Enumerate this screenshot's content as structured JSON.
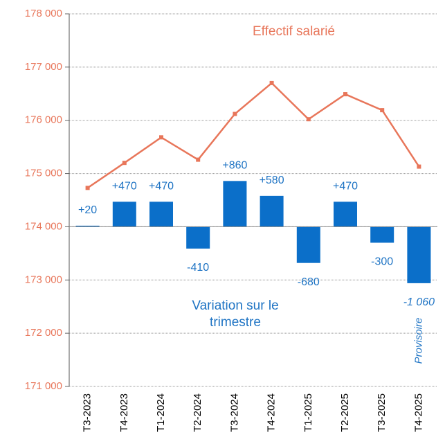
{
  "chart_data": {
    "type": "combo",
    "categories": [
      "T3-2023",
      "T4-2023",
      "T1-2024",
      "T2-2024",
      "T3-2024",
      "T4-2024",
      "T1-2025",
      "T2-2025",
      "T3-2025",
      "T4-2025"
    ],
    "series": [
      {
        "name": "Effectif salarié",
        "kind": "line",
        "color": "#e8765a",
        "values": [
          174730,
          175200,
          175680,
          175260,
          176120,
          176700,
          176020,
          176490,
          176190,
          175130
        ]
      },
      {
        "name": "Variation sur le trimestre",
        "kind": "bar",
        "axis": "y2",
        "color": "#0b6fc9",
        "values": [
          20,
          470,
          470,
          -410,
          860,
          580,
          -680,
          470,
          -300,
          -1060
        ],
        "value_labels": [
          "+20",
          "+470",
          "+470",
          "-410",
          "+860",
          "+580",
          "-680",
          "+470",
          "-300",
          "-1 060"
        ]
      }
    ],
    "annotations": [
      "Provisoire"
    ],
    "ylim": [
      171000,
      178000
    ],
    "yticks": [
      {
        "value": 171000,
        "label": "171 000"
      },
      {
        "value": 172000,
        "label": "172 000"
      },
      {
        "value": 173000,
        "label": "173 000"
      },
      {
        "value": 174000,
        "label": "174 000"
      },
      {
        "value": 175000,
        "label": "175 000"
      },
      {
        "value": 176000,
        "label": "176 000"
      },
      {
        "value": 177000,
        "label": "177 000"
      },
      {
        "value": 178000,
        "label": "178 000"
      }
    ],
    "y2lim": [
      -3000,
      4000
    ],
    "grid": true
  }
}
